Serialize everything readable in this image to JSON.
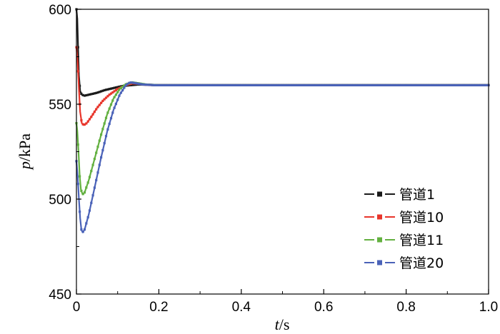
{
  "chart_data": {
    "type": "line",
    "xlabel": {
      "italic": "t",
      "unit": "/s"
    },
    "ylabel": {
      "italic": "p",
      "unit": "/kPa"
    },
    "xlim": [
      0,
      1.0
    ],
    "ylim": [
      450,
      600
    ],
    "xticks": [
      "0",
      "0.2",
      "0.4",
      "0.6",
      "0.8",
      "1.0"
    ],
    "yticks": [
      "450",
      "500",
      "550",
      "600"
    ],
    "legend_position": "bottom-right",
    "grid": false,
    "series": [
      {
        "name": "管道1",
        "color": "#1a1a1a",
        "marker": "square",
        "points": [
          [
            0,
            600
          ],
          [
            0.002,
            595
          ],
          [
            0.004,
            580
          ],
          [
            0.006,
            565
          ],
          [
            0.009,
            557
          ],
          [
            0.013,
            555
          ],
          [
            0.02,
            554.5
          ],
          [
            0.03,
            555
          ],
          [
            0.05,
            556
          ],
          [
            0.07,
            557.5
          ],
          [
            0.09,
            558.5
          ],
          [
            0.11,
            559.5
          ],
          [
            0.13,
            560
          ],
          [
            0.15,
            560.4
          ],
          [
            0.17,
            560.3
          ],
          [
            0.2,
            560
          ],
          [
            0.25,
            560
          ],
          [
            0.3,
            560
          ],
          [
            0.4,
            560
          ],
          [
            0.5,
            560
          ],
          [
            0.6,
            560
          ],
          [
            0.7,
            560
          ],
          [
            0.8,
            560
          ],
          [
            0.9,
            560
          ],
          [
            1.0,
            560
          ]
        ]
      },
      {
        "name": "管道10",
        "color": "#e8352b",
        "marker": "square",
        "points": [
          [
            0,
            580
          ],
          [
            0.003,
            572
          ],
          [
            0.006,
            558
          ],
          [
            0.009,
            546
          ],
          [
            0.013,
            540
          ],
          [
            0.018,
            539
          ],
          [
            0.025,
            540
          ],
          [
            0.035,
            543
          ],
          [
            0.05,
            548
          ],
          [
            0.065,
            552
          ],
          [
            0.08,
            555
          ],
          [
            0.1,
            558
          ],
          [
            0.12,
            560
          ],
          [
            0.135,
            561
          ],
          [
            0.15,
            560.8
          ],
          [
            0.17,
            560.2
          ],
          [
            0.2,
            560
          ],
          [
            0.3,
            560
          ],
          [
            0.4,
            560
          ],
          [
            0.5,
            560
          ],
          [
            0.6,
            560
          ],
          [
            0.7,
            560
          ],
          [
            0.8,
            560
          ],
          [
            0.9,
            560
          ],
          [
            1.0,
            560
          ]
        ]
      },
      {
        "name": "管道11",
        "color": "#63b040",
        "marker": "square",
        "points": [
          [
            0,
            540
          ],
          [
            0.002,
            536
          ],
          [
            0.005,
            525
          ],
          [
            0.008,
            512
          ],
          [
            0.011,
            505
          ],
          [
            0.015,
            502.5
          ],
          [
            0.02,
            503.5
          ],
          [
            0.03,
            510
          ],
          [
            0.045,
            522
          ],
          [
            0.06,
            534
          ],
          [
            0.075,
            545
          ],
          [
            0.09,
            553
          ],
          [
            0.105,
            558
          ],
          [
            0.12,
            560.5
          ],
          [
            0.135,
            561.5
          ],
          [
            0.15,
            561
          ],
          [
            0.17,
            560.3
          ],
          [
            0.2,
            560
          ],
          [
            0.3,
            560
          ],
          [
            0.4,
            560
          ],
          [
            0.5,
            560
          ],
          [
            0.6,
            560
          ],
          [
            0.7,
            560
          ],
          [
            0.8,
            560
          ],
          [
            0.9,
            560
          ],
          [
            1.0,
            560
          ]
        ]
      },
      {
        "name": "管道20",
        "color": "#4a62b8",
        "marker": "square",
        "points": [
          [
            0,
            520
          ],
          [
            0.003,
            512
          ],
          [
            0.006,
            500
          ],
          [
            0.009,
            490
          ],
          [
            0.012,
            484
          ],
          [
            0.015,
            482.5
          ],
          [
            0.02,
            484
          ],
          [
            0.03,
            492
          ],
          [
            0.045,
            507
          ],
          [
            0.06,
            522
          ],
          [
            0.075,
            536
          ],
          [
            0.09,
            547
          ],
          [
            0.105,
            555
          ],
          [
            0.12,
            560
          ],
          [
            0.13,
            561.5
          ],
          [
            0.14,
            561.2
          ],
          [
            0.16,
            560.4
          ],
          [
            0.19,
            560
          ],
          [
            0.25,
            560
          ],
          [
            0.3,
            560
          ],
          [
            0.4,
            560
          ],
          [
            0.5,
            560
          ],
          [
            0.6,
            560
          ],
          [
            0.7,
            560
          ],
          [
            0.8,
            560
          ],
          [
            0.9,
            560
          ],
          [
            1.0,
            560
          ]
        ]
      }
    ]
  }
}
